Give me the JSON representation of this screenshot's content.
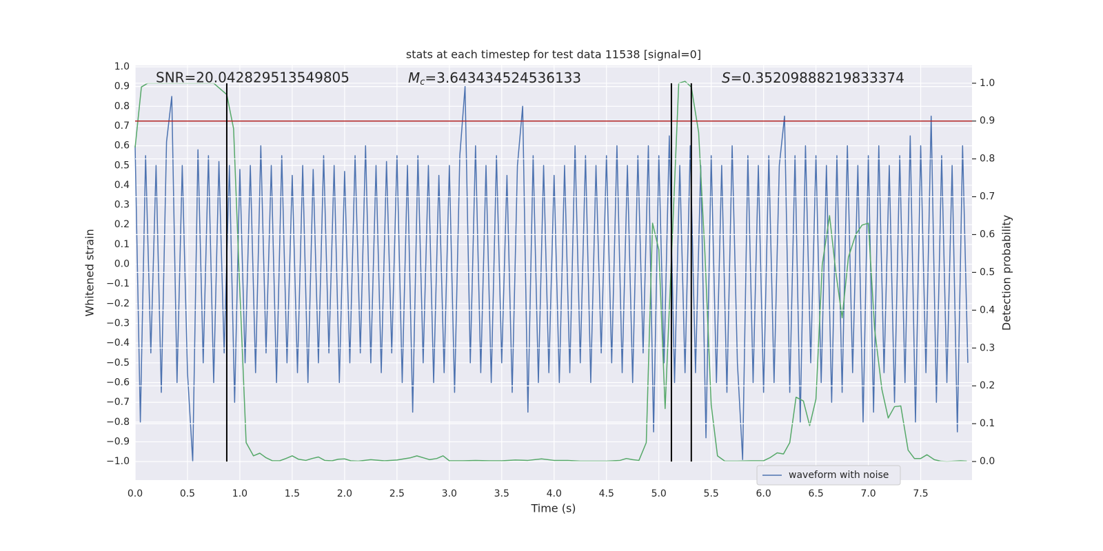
{
  "chart_data": {
    "type": "line",
    "title": "stats at each timestep for test data 11538 [signal=0]",
    "x_label": "Time (s)",
    "y_label": "Whitened strain",
    "y2_label": "Detection probability",
    "annotations": [
      {
        "text": "SNR=20.042829513549805"
      },
      {
        "symbol": "M",
        "sub": "c",
        "text": "=3.643434524536133"
      },
      {
        "symbol": "S",
        "text": "=0.35209888219833374"
      }
    ],
    "xlim": [
      0,
      7.99
    ],
    "ylim": [
      -1.094,
      1.007
    ],
    "y2lim": [
      -0.049,
      1.047
    ],
    "xticks": [
      {
        "value": 0,
        "label": "0.0"
      },
      {
        "value": 0.5,
        "label": "0.5"
      },
      {
        "value": 1,
        "label": "1.0"
      },
      {
        "value": 1.5,
        "label": "1.5"
      },
      {
        "value": 2,
        "label": "2.0"
      },
      {
        "value": 2.5,
        "label": "2.5"
      },
      {
        "value": 3,
        "label": "3.0"
      },
      {
        "value": 3.5,
        "label": "3.5"
      },
      {
        "value": 4,
        "label": "4.0"
      },
      {
        "value": 4.5,
        "label": "4.5"
      },
      {
        "value": 5,
        "label": "5.0"
      },
      {
        "value": 5.5,
        "label": "5.5"
      },
      {
        "value": 6,
        "label": "6.0"
      },
      {
        "value": 6.5,
        "label": "6.5"
      },
      {
        "value": 7,
        "label": "7.0"
      },
      {
        "value": 7.5,
        "label": "7.5"
      }
    ],
    "yticks": [
      {
        "value": 1,
        "label": "1.0"
      },
      {
        "value": 0.9,
        "label": "0.9"
      },
      {
        "value": 0.8,
        "label": "0.8"
      },
      {
        "value": 0.7,
        "label": "0.7"
      },
      {
        "value": 0.6,
        "label": "0.6"
      },
      {
        "value": 0.5,
        "label": "0.5"
      },
      {
        "value": 0.4,
        "label": "0.4"
      },
      {
        "value": 0.3,
        "label": "0.3"
      },
      {
        "value": 0.2,
        "label": "0.2"
      },
      {
        "value": 0.1,
        "label": "0.1"
      },
      {
        "value": 0,
        "label": "0.0"
      },
      {
        "value": -0.1,
        "label": "−0.1"
      },
      {
        "value": -0.2,
        "label": "−0.2"
      },
      {
        "value": -0.3,
        "label": "−0.3"
      },
      {
        "value": -0.4,
        "label": "−0.4"
      },
      {
        "value": -0.5,
        "label": "−0.5"
      },
      {
        "value": -0.6,
        "label": "−0.6"
      },
      {
        "value": -0.7,
        "label": "−0.7"
      },
      {
        "value": -0.8,
        "label": "−0.8"
      },
      {
        "value": -0.9,
        "label": "−0.9"
      },
      {
        "value": -1,
        "label": "−1.0"
      }
    ],
    "y2ticks": [
      {
        "value": 1,
        "label": "1.0"
      },
      {
        "value": 0.9,
        "label": "0.9"
      },
      {
        "value": 0.8,
        "label": "0.8"
      },
      {
        "value": 0.7,
        "label": "0.7"
      },
      {
        "value": 0.6,
        "label": "0.6"
      },
      {
        "value": 0.5,
        "label": "0.5"
      },
      {
        "value": 0.4,
        "label": "0.4"
      },
      {
        "value": 0.3,
        "label": "0.3"
      },
      {
        "value": 0.2,
        "label": "0.2"
      },
      {
        "value": 0.1,
        "label": "0.1"
      },
      {
        "value": 0,
        "label": "0.0"
      }
    ],
    "grid": true,
    "legend": "lower right",
    "hline": {
      "value": 0.9,
      "axis": "y2",
      "color": "#b22222"
    },
    "vlines": {
      "x": [
        0.875,
        5.12,
        5.31
      ],
      "span": [
        0,
        1
      ],
      "axis": "y2",
      "color": "#000000"
    },
    "series": [
      {
        "name": "waveform with noise",
        "color": "#4c72b0",
        "x": [
          0,
          0.05,
          0.1,
          0.15,
          0.2,
          0.25,
          0.3,
          0.35,
          0.4,
          0.45,
          0.5,
          0.55,
          0.6,
          0.65,
          0.7,
          0.75,
          0.8,
          0.85,
          0.9,
          0.95,
          1,
          1.05,
          1.1,
          1.15,
          1.2,
          1.25,
          1.3,
          1.35,
          1.4,
          1.45,
          1.5,
          1.55,
          1.6,
          1.65,
          1.7,
          1.75,
          1.8,
          1.85,
          1.9,
          1.95,
          2,
          2.05,
          2.1,
          2.15,
          2.2,
          2.25,
          2.3,
          2.35,
          2.4,
          2.45,
          2.5,
          2.55,
          2.6,
          2.65,
          2.7,
          2.75,
          2.8,
          2.85,
          2.9,
          2.95,
          3,
          3.05,
          3.1,
          3.15,
          3.2,
          3.25,
          3.3,
          3.35,
          3.4,
          3.45,
          3.5,
          3.55,
          3.6,
          3.65,
          3.7,
          3.75,
          3.8,
          3.85,
          3.9,
          3.95,
          4,
          4.05,
          4.1,
          4.15,
          4.2,
          4.25,
          4.3,
          4.35,
          4.4,
          4.45,
          4.5,
          4.55,
          4.6,
          4.65,
          4.7,
          4.75,
          4.8,
          4.85,
          4.9,
          4.95,
          5,
          5.05,
          5.1,
          5.15,
          5.2,
          5.25,
          5.3,
          5.35,
          5.4,
          5.45,
          5.5,
          5.55,
          5.6,
          5.65,
          5.7,
          5.75,
          5.8,
          5.85,
          5.9,
          5.95,
          6,
          6.05,
          6.1,
          6.15,
          6.2,
          6.25,
          6.3,
          6.35,
          6.4,
          6.45,
          6.5,
          6.55,
          6.6,
          6.65,
          6.7,
          6.75,
          6.8,
          6.85,
          6.9,
          6.95,
          7,
          7.05,
          7.1,
          7.15,
          7.2,
          7.25,
          7.3,
          7.35,
          7.4,
          7.45,
          7.5,
          7.55,
          7.6,
          7.65,
          7.7,
          7.75,
          7.8,
          7.85,
          7.9,
          7.95
        ],
        "values": [
          0.6,
          -0.8,
          0.55,
          -0.45,
          0.5,
          -0.65,
          0.62,
          0.85,
          -0.6,
          0.5,
          -0.55,
          -1.0,
          0.58,
          -0.5,
          0.55,
          -0.6,
          0.52,
          -0.45,
          0.5,
          -0.7,
          0.48,
          -0.5,
          0.5,
          -0.55,
          0.6,
          -0.45,
          0.5,
          -0.6,
          0.55,
          -0.5,
          0.45,
          -0.55,
          0.5,
          -0.6,
          0.48,
          -0.5,
          0.55,
          -0.45,
          0.5,
          -0.6,
          0.47,
          -0.5,
          0.55,
          -0.45,
          0.6,
          -0.5,
          0.5,
          -0.55,
          0.52,
          -0.45,
          0.55,
          -0.6,
          0.5,
          -0.75,
          0.55,
          -0.5,
          0.5,
          -0.6,
          0.45,
          -0.55,
          0.5,
          -0.65,
          0.55,
          0.9,
          -0.5,
          0.6,
          -0.55,
          0.5,
          -0.6,
          0.55,
          -0.5,
          0.45,
          -0.65,
          0.5,
          0.8,
          -0.75,
          0.55,
          -0.6,
          0.5,
          -0.55,
          0.45,
          -0.6,
          0.5,
          -0.55,
          0.6,
          -0.5,
          0.55,
          -0.6,
          0.5,
          -0.45,
          0.55,
          -0.5,
          0.6,
          -0.55,
          0.5,
          -0.6,
          0.55,
          -0.45,
          0.6,
          -0.85,
          0.55,
          -0.5,
          0.65,
          -0.6,
          0.5,
          -0.55,
          0.6,
          -0.55,
          0.5,
          -0.88,
          0.55,
          -0.6,
          0.5,
          -0.65,
          0.6,
          -0.5,
          -0.99,
          0.55,
          -0.6,
          0.5,
          -0.65,
          0.55,
          -0.6,
          0.5,
          0.75,
          -0.65,
          0.55,
          -0.8,
          0.6,
          -0.5,
          0.55,
          -0.6,
          0.5,
          -0.7,
          0.55,
          -0.65,
          0.6,
          -0.55,
          0.5,
          -0.8,
          0.55,
          -0.75,
          0.6,
          -0.55,
          0.5,
          -0.7,
          0.55,
          -0.6,
          0.65,
          -0.8,
          0.6,
          -0.55,
          0.75,
          -0.7,
          0.55,
          -0.6,
          0.5,
          -0.85,
          0.6,
          -0.5
        ]
      },
      {
        "color": "#55a868",
        "axis": "y2",
        "x": [
          0,
          0.06,
          0.12,
          0.75,
          0.875,
          0.94,
          1,
          1.06,
          1.13,
          1.19,
          1.25,
          1.31,
          1.38,
          1.44,
          1.5,
          1.56,
          1.63,
          1.69,
          1.75,
          1.81,
          1.88,
          1.94,
          2,
          2.06,
          2.13,
          2.25,
          2.38,
          2.5,
          2.63,
          2.69,
          2.75,
          2.81,
          2.88,
          2.94,
          3,
          3.13,
          3.25,
          3.38,
          3.5,
          3.63,
          3.75,
          3.88,
          4,
          4.13,
          4.25,
          4.38,
          4.5,
          4.63,
          4.69,
          4.75,
          4.81,
          4.88,
          4.94,
          5,
          5.06,
          5.13,
          5.19,
          5.25,
          5.31,
          5.38,
          5.44,
          5.5,
          5.56,
          5.63,
          5.75,
          5.88,
          6,
          6.06,
          6.13,
          6.19,
          6.25,
          6.31,
          6.38,
          6.44,
          6.5,
          6.56,
          6.63,
          6.69,
          6.75,
          6.81,
          6.88,
          6.94,
          7,
          7.06,
          7.13,
          7.19,
          7.25,
          7.31,
          7.38,
          7.44,
          7.5,
          7.56,
          7.63,
          7.69,
          7.75,
          7.88,
          7.94
        ],
        "values": [
          0.83,
          0.99,
          1.0,
          1.0,
          0.97,
          0.88,
          0.45,
          0.05,
          0.015,
          0.022,
          0.01,
          0.002,
          0.002,
          0.008,
          0.015,
          0.006,
          0.003,
          0.008,
          0.012,
          0.003,
          0.002,
          0.006,
          0.007,
          0.002,
          0.001,
          0.005,
          0.002,
          0.004,
          0.01,
          0.015,
          0.01,
          0.005,
          0.008,
          0.015,
          0.002,
          0.002,
          0.003,
          0.002,
          0.002,
          0.004,
          0.003,
          0.007,
          0.003,
          0.003,
          0.001,
          0.001,
          0.001,
          0.003,
          0.008,
          0.005,
          0.003,
          0.05,
          0.63,
          0.56,
          0.14,
          0.6,
          1.0,
          1.005,
          0.99,
          0.87,
          0.55,
          0.15,
          0.015,
          0.001,
          0.001,
          0.002,
          0.002,
          0.01,
          0.023,
          0.02,
          0.05,
          0.17,
          0.16,
          0.095,
          0.165,
          0.52,
          0.65,
          0.5,
          0.38,
          0.54,
          0.6,
          0.625,
          0.63,
          0.35,
          0.19,
          0.115,
          0.145,
          0.147,
          0.03,
          0.008,
          0.008,
          0.018,
          0.005,
          0.001,
          0.0,
          0.002,
          0.001
        ]
      }
    ]
  }
}
